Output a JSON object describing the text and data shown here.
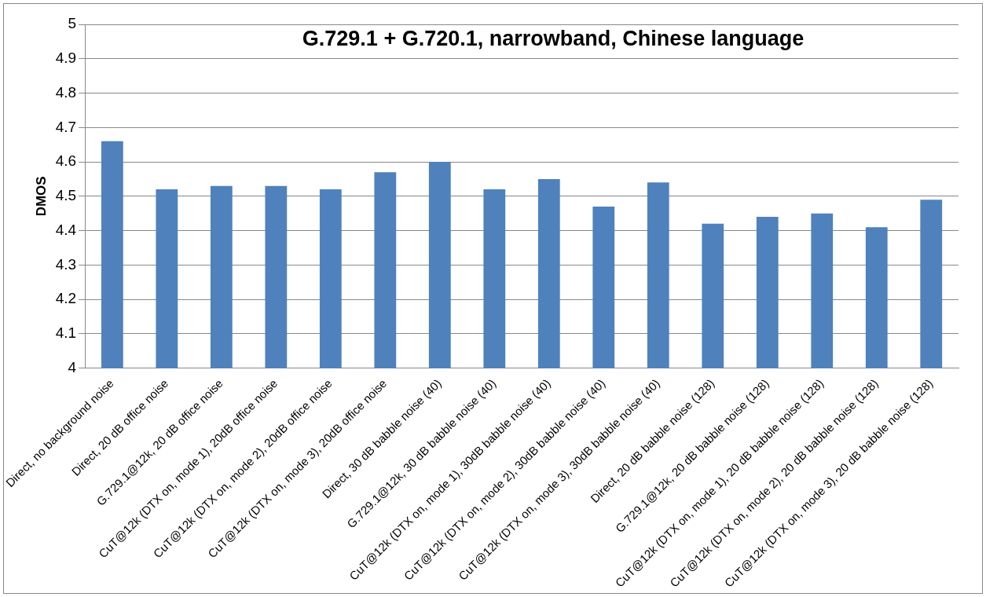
{
  "chart_data": {
    "type": "bar",
    "title": "G.729.1 + G.720.1, narrowband, Chinese language",
    "ylabel": "DMOS",
    "categories": [
      "Direct, no background noise",
      "Direct, 20 dB office noise",
      "G.729.1@12k, 20 dB office noise",
      "CuT@12k (DTX on, mode 1), 20dB office noise",
      "CuT@12k (DTX on, mode 2), 20dB office noise",
      "CuT@12k (DTX on, mode 3), 20dB office noise",
      "Direct, 30 dB babble noise (40)",
      "G.729.1@12k, 30 dB babble noise (40)",
      "CuT@12k (DTX on, mode 1), 30dB babble noise (40)",
      "CuT@12k (DTX on, mode 2), 30dB babble noise (40)",
      "CuT@12k (DTX on, mode 3), 30dB babble noise (40)",
      "Direct, 20 dB babble noise (128)",
      "G.729.1@12k, 20 dB babble noise (128)",
      "CuT@12k (DTX on, mode 1), 20 dB babble noise (128)",
      "CuT@12k (DTX on, mode 2), 20 dB babble noise (128)",
      "CuT@12k (DTX on, mode 3), 20 dB babble noise (128)"
    ],
    "values": [
      4.66,
      4.52,
      4.53,
      4.53,
      4.52,
      4.57,
      4.6,
      4.52,
      4.55,
      4.47,
      4.54,
      4.42,
      4.44,
      4.45,
      4.41,
      4.49
    ],
    "color": "#4f81bd",
    "ylim": [
      4,
      5
    ],
    "yticks": [
      4,
      4.1,
      4.2,
      4.3,
      4.4,
      4.5,
      4.6,
      4.7,
      4.8,
      4.9,
      5
    ],
    "grid": "y"
  }
}
